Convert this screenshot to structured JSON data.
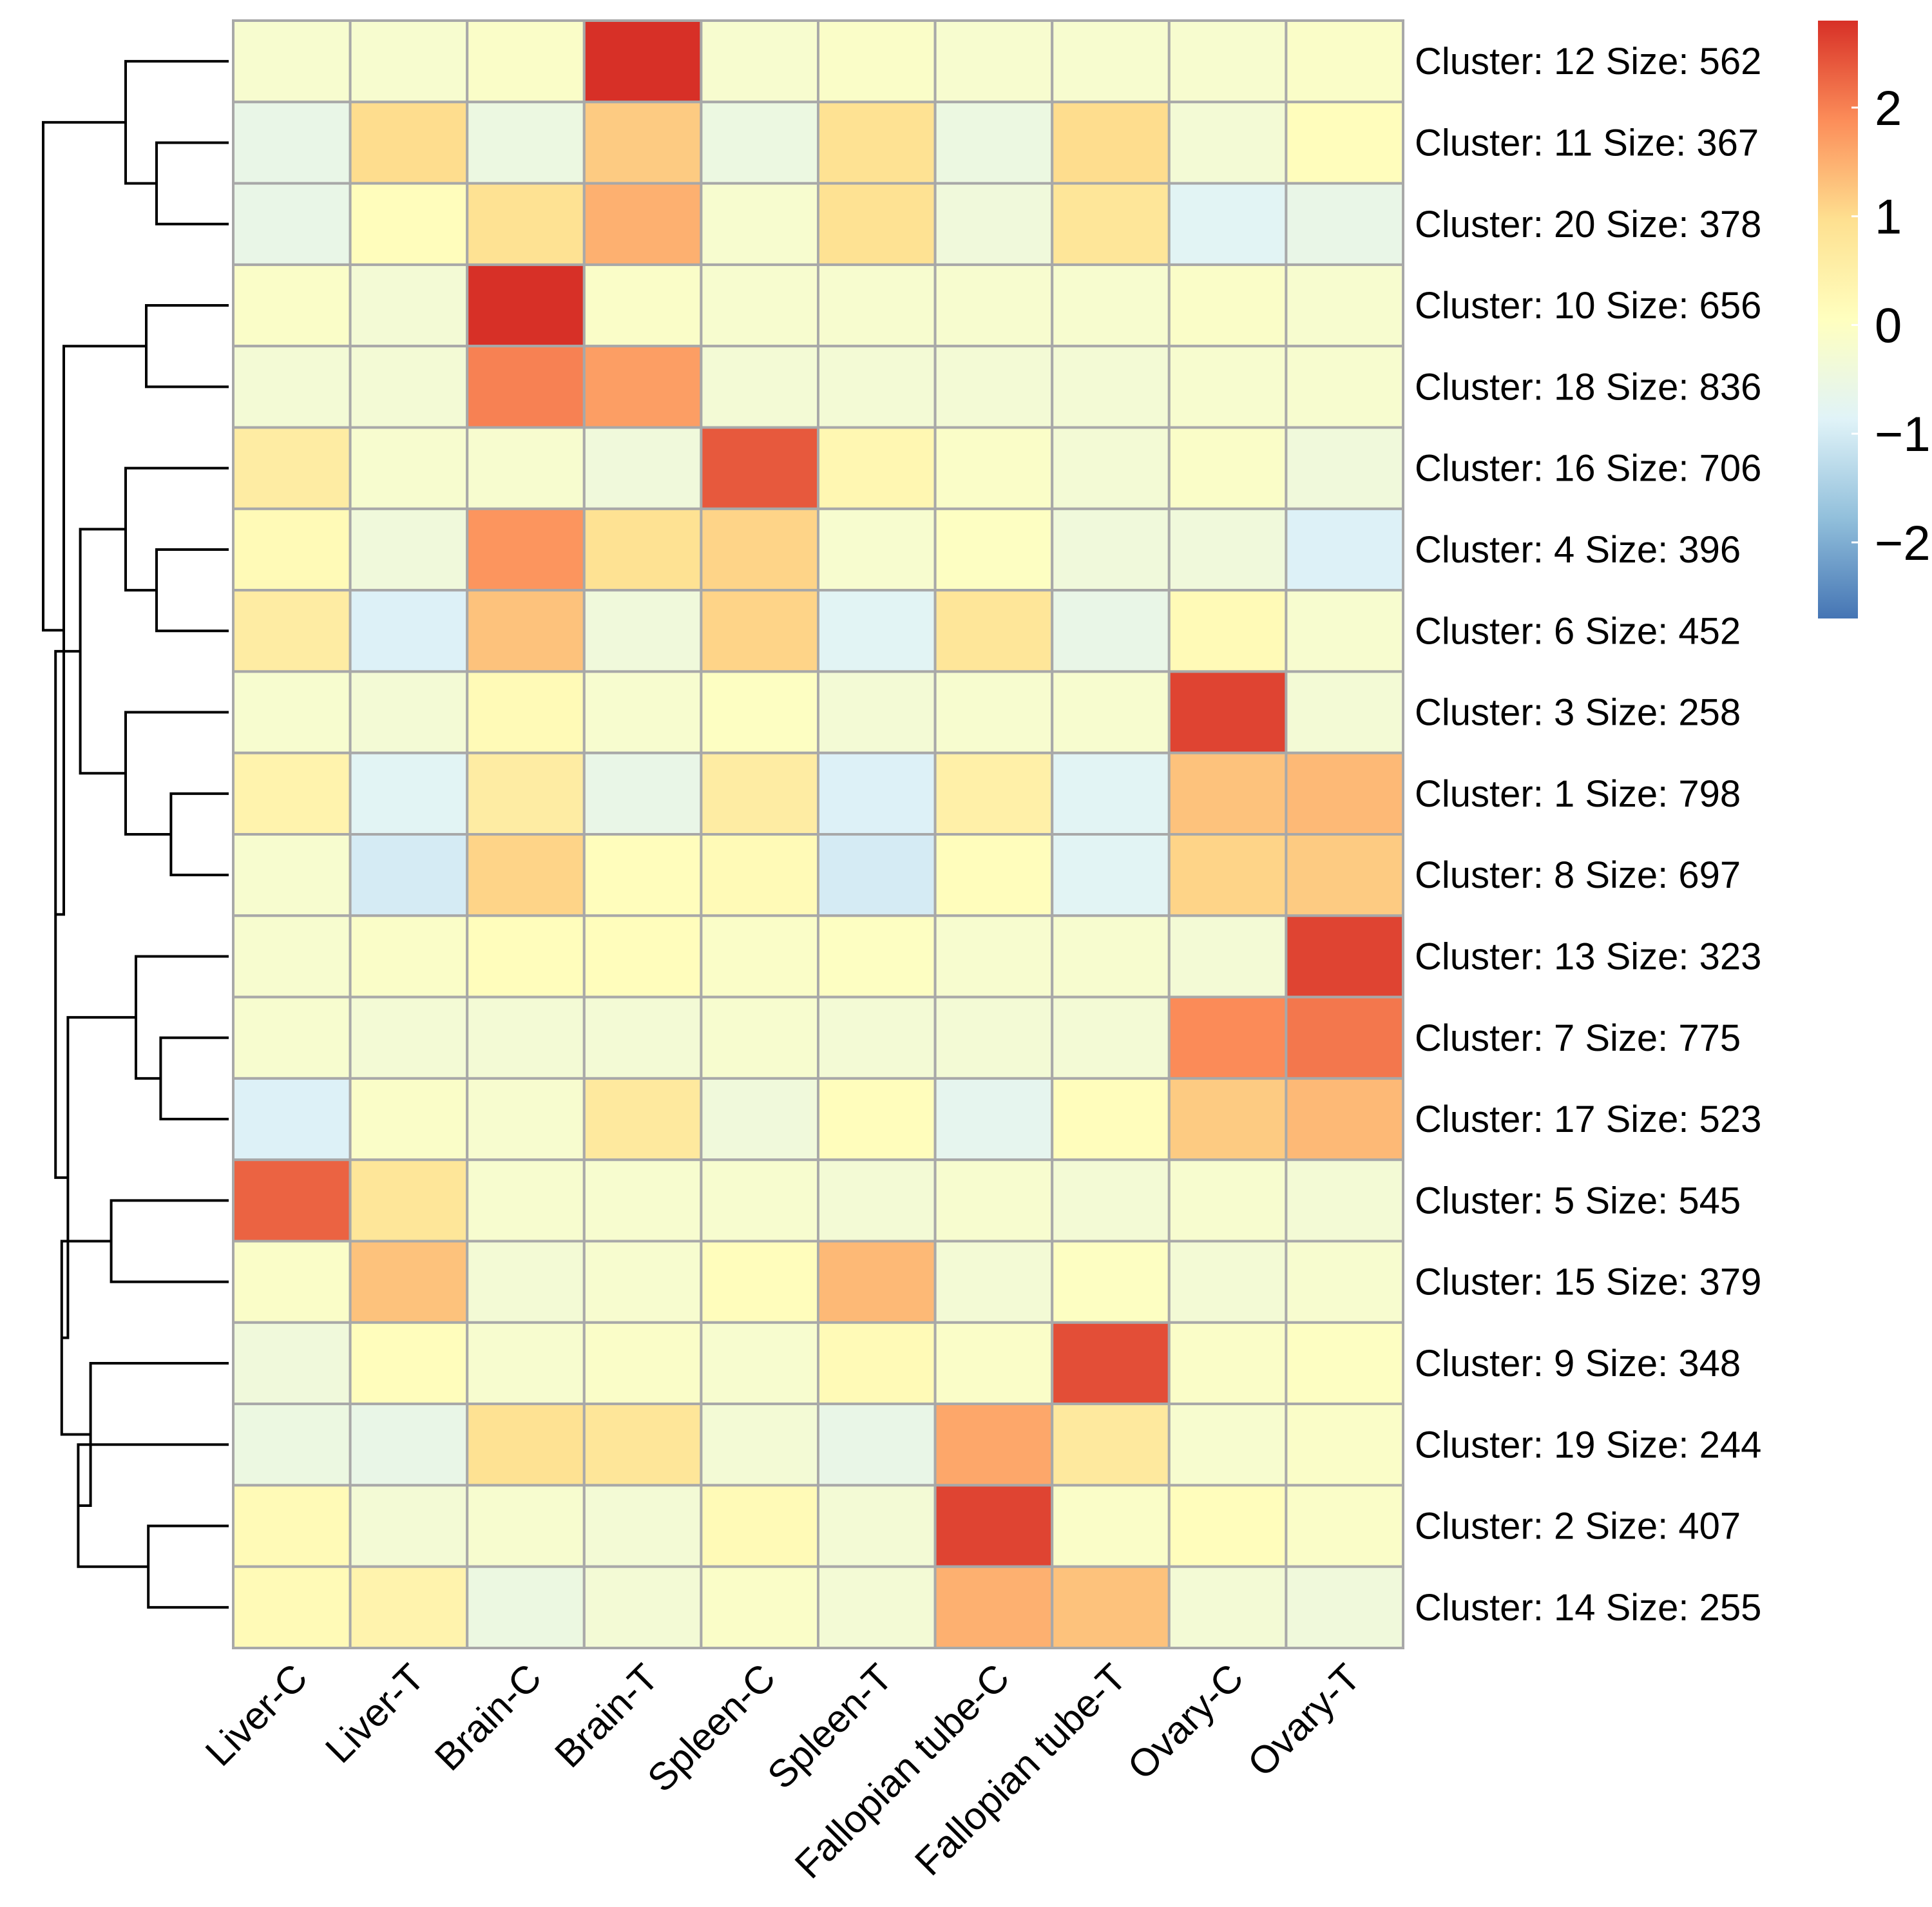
{
  "chart_data": {
    "type": "heatmap",
    "title": "",
    "columns": [
      "Liver-C",
      "Liver-T",
      "Brain-C",
      "Brain-T",
      "Spleen-C",
      "Spleen-T",
      "Fallopian tube-C",
      "Fallopian tube-T",
      "Ovary-C",
      "Ovary-T"
    ],
    "rows": [
      "Cluster: 12 Size: 562",
      "Cluster: 11 Size: 367",
      "Cluster: 20 Size: 378",
      "Cluster: 10 Size: 656",
      "Cluster: 18 Size: 836",
      "Cluster: 16 Size: 706",
      "Cluster: 4 Size: 396",
      "Cluster: 6 Size: 452",
      "Cluster: 3 Size: 258",
      "Cluster: 1 Size: 798",
      "Cluster: 8 Size: 697",
      "Cluster: 13 Size: 323",
      "Cluster: 7 Size: 775",
      "Cluster: 17 Size: 523",
      "Cluster: 5 Size: 545",
      "Cluster: 15 Size: 379",
      "Cluster: 9 Size: 348",
      "Cluster: 19 Size: 244",
      "Cluster: 2 Size: 407",
      "Cluster: 14 Size: 255"
    ],
    "values": [
      [
        -0.2,
        -0.2,
        -0.1,
        2.8,
        -0.2,
        -0.1,
        -0.2,
        -0.2,
        -0.2,
        -0.1
      ],
      [
        -0.6,
        1.0,
        -0.5,
        1.2,
        -0.5,
        0.9,
        -0.5,
        1.0,
        -0.3,
        0.1
      ],
      [
        -0.6,
        0.1,
        0.9,
        1.5,
        -0.2,
        0.9,
        -0.4,
        0.8,
        -0.8,
        -0.6
      ],
      [
        -0.1,
        -0.3,
        2.8,
        -0.1,
        -0.2,
        -0.2,
        -0.2,
        -0.2,
        -0.1,
        -0.2
      ],
      [
        -0.3,
        -0.3,
        2.0,
        1.7,
        -0.3,
        -0.3,
        -0.3,
        -0.3,
        -0.2,
        -0.2
      ],
      [
        0.6,
        -0.2,
        -0.2,
        -0.4,
        2.4,
        0.3,
        -0.1,
        -0.3,
        -0.1,
        -0.4
      ],
      [
        0.2,
        -0.4,
        1.8,
        0.9,
        1.1,
        -0.2,
        0.0,
        -0.4,
        -0.4,
        -0.9
      ],
      [
        0.6,
        -0.9,
        1.3,
        -0.4,
        1.1,
        -0.8,
        0.8,
        -0.6,
        0.2,
        -0.2
      ],
      [
        -0.2,
        -0.3,
        0.2,
        -0.2,
        0.0,
        -0.3,
        -0.2,
        -0.2,
        2.6,
        -0.3
      ],
      [
        0.4,
        -0.8,
        0.6,
        -0.6,
        0.6,
        -0.9,
        0.5,
        -0.8,
        1.3,
        1.4
      ],
      [
        -0.2,
        -1.0,
        1.1,
        0.1,
        0.2,
        -1.0,
        0.1,
        -0.8,
        1.1,
        1.2
      ],
      [
        -0.2,
        -0.1,
        0.1,
        0.1,
        -0.1,
        0.0,
        -0.2,
        -0.2,
        -0.3,
        2.6
      ],
      [
        -0.2,
        -0.3,
        -0.3,
        -0.3,
        -0.2,
        -0.3,
        -0.3,
        -0.3,
        1.9,
        2.1
      ],
      [
        -0.9,
        -0.1,
        -0.2,
        0.7,
        -0.4,
        0.1,
        -0.7,
        0.1,
        1.2,
        1.4
      ],
      [
        2.3,
        0.8,
        -0.2,
        -0.2,
        -0.2,
        -0.3,
        -0.2,
        -0.3,
        -0.2,
        -0.3
      ],
      [
        -0.1,
        1.3,
        -0.3,
        -0.2,
        0.1,
        1.4,
        -0.3,
        0.0,
        -0.3,
        -0.2
      ],
      [
        -0.4,
        0.1,
        -0.2,
        -0.1,
        -0.2,
        0.2,
        -0.1,
        2.5,
        -0.1,
        0.0
      ],
      [
        -0.5,
        -0.6,
        0.9,
        0.8,
        -0.3,
        -0.6,
        1.6,
        0.7,
        -0.2,
        -0.1
      ],
      [
        0.2,
        -0.3,
        -0.2,
        -0.3,
        0.2,
        -0.3,
        2.6,
        -0.1,
        0.1,
        -0.1
      ],
      [
        0.2,
        0.4,
        -0.5,
        -0.3,
        -0.1,
        -0.3,
        1.5,
        1.3,
        -0.3,
        -0.4
      ]
    ],
    "value_range": [
      -2.7,
      2.8
    ],
    "legend": {
      "position": "top-right",
      "ticks": [
        2,
        1,
        0,
        -1,
        -2
      ],
      "tick_labels": [
        "2",
        "1",
        "0",
        "−1",
        "−2"
      ],
      "colors": [
        "#4575b4",
        "#91bfdb",
        "#e0f3f8",
        "#ffffbf",
        "#fee090",
        "#fc8d59",
        "#d73027"
      ]
    },
    "dendrogram": {
      "side": "left",
      "merges": [
        [
          1,
          2,
          0.35
        ],
        [
          0,
          "m0",
          0.5
        ],
        [
          3,
          4,
          0.4
        ],
        [
          6,
          7,
          0.35
        ],
        [
          5,
          "m3",
          0.5
        ],
        [
          9,
          10,
          0.28
        ],
        [
          8,
          "m5",
          0.5
        ],
        [
          "m4",
          "m6",
          0.72
        ],
        [
          12,
          13,
          0.33
        ],
        [
          11,
          "m8",
          0.45
        ],
        [
          14,
          15,
          0.57
        ],
        [
          18,
          19,
          0.39
        ],
        [
          17,
          "m11",
          0.73
        ],
        [
          16,
          "m12",
          0.67
        ],
        [
          "m10",
          "m13",
          0.81
        ],
        [
          "m9",
          "m14",
          0.78
        ],
        [
          "m7",
          "m15",
          0.84
        ],
        [
          "m2",
          "m16",
          0.8
        ],
        [
          "m1",
          "m17",
          0.9
        ]
      ]
    }
  },
  "colors": {
    "cell_border": "#a8a8a8",
    "text": "#000000",
    "background": "#ffffff"
  }
}
